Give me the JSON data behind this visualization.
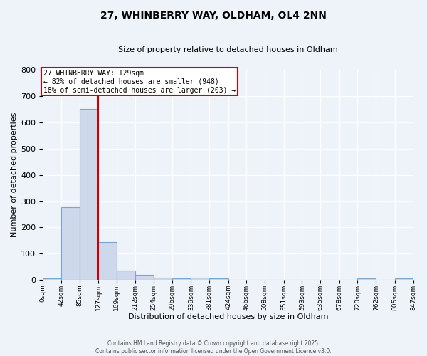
{
  "title": "27, WHINBERRY WAY, OLDHAM, OL4 2NN",
  "subtitle": "Size of property relative to detached houses in Oldham",
  "xlabel": "Distribution of detached houses by size in Oldham",
  "ylabel": "Number of detached properties",
  "bin_edges": [
    0,
    42,
    85,
    127,
    169,
    212,
    254,
    296,
    339,
    381,
    424,
    466,
    508,
    551,
    593,
    635,
    678,
    720,
    762,
    805,
    847
  ],
  "bar_heights": [
    5,
    278,
    650,
    143,
    37,
    20,
    10,
    5,
    10,
    5,
    0,
    0,
    0,
    0,
    0,
    0,
    0,
    5,
    0,
    5
  ],
  "bar_color": "#cdd8ea",
  "bar_edge_color": "#7ba7cc",
  "property_line_x": 127,
  "property_line_color": "#cc0000",
  "annotation_text": "27 WHINBERRY WAY: 129sqm\n← 82% of detached houses are smaller (948)\n18% of semi-detached houses are larger (203) →",
  "annotation_box_facecolor": "#ffffff",
  "annotation_box_edgecolor": "#cc0000",
  "ylim": [
    0,
    800
  ],
  "yticks": [
    0,
    100,
    200,
    300,
    400,
    500,
    600,
    700,
    800
  ],
  "tick_labels": [
    "0sqm",
    "42sqm",
    "85sqm",
    "127sqm",
    "169sqm",
    "212sqm",
    "254sqm",
    "296sqm",
    "339sqm",
    "381sqm",
    "424sqm",
    "466sqm",
    "508sqm",
    "551sqm",
    "593sqm",
    "635sqm",
    "678sqm",
    "720sqm",
    "762sqm",
    "805sqm",
    "847sqm"
  ],
  "footer_text": "Contains HM Land Registry data © Crown copyright and database right 2025.\nContains public sector information licensed under the Open Government Licence v3.0.",
  "bg_color": "#eef2f9",
  "plot_bg_color": "#eef2f9",
  "grid_color": "#ffffff",
  "title_fontsize": 10,
  "subtitle_fontsize": 8,
  "xlabel_fontsize": 8,
  "ylabel_fontsize": 8,
  "ytick_fontsize": 8,
  "xtick_fontsize": 6.5,
  "footer_fontsize": 5.5,
  "annot_fontsize": 7
}
